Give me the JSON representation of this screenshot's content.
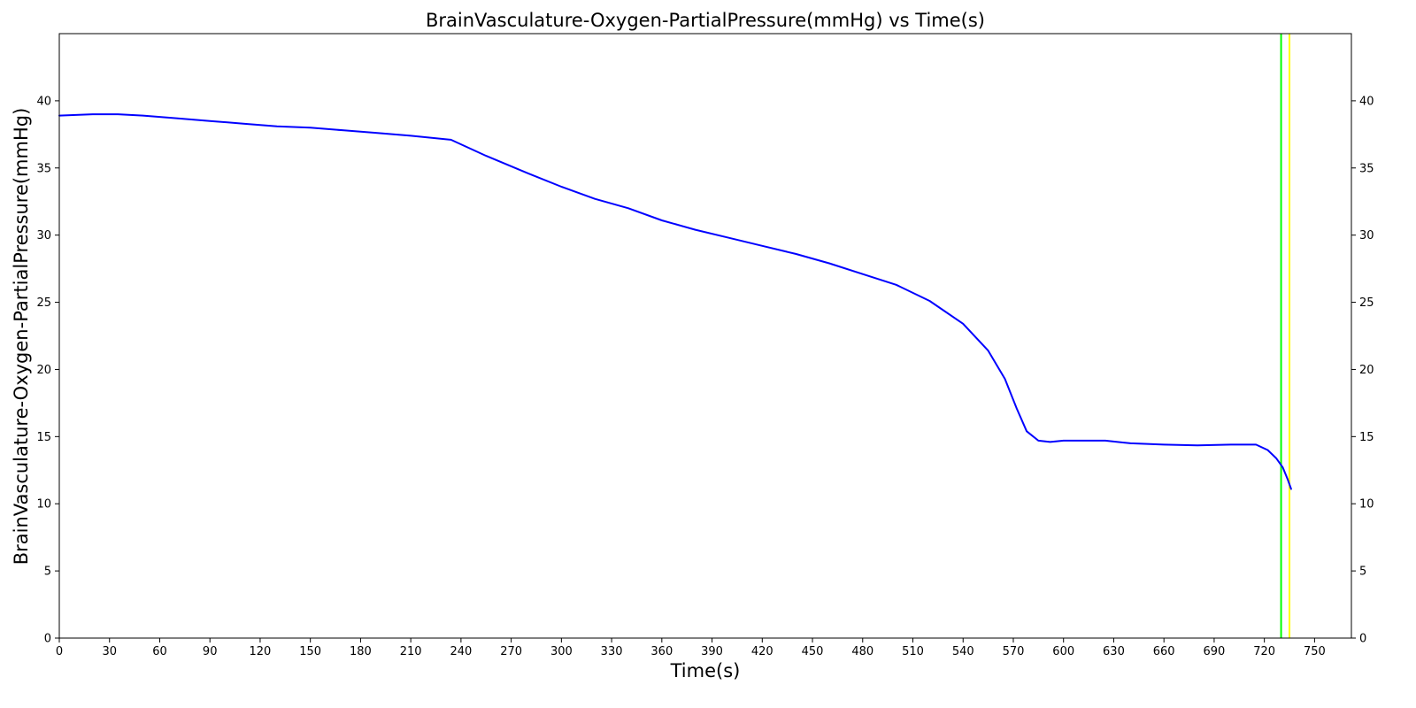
{
  "chart_data": {
    "type": "line",
    "title": "BrainVasculature-Oxygen-PartialPressure(mmHg) vs Time(s)",
    "xlabel": "Time(s)",
    "ylabel": "BrainVasculature-Oxygen-PartialPressure(mmHg)",
    "xlim": [
      0,
      772
    ],
    "ylim": [
      0,
      45
    ],
    "x_ticks": [
      0,
      30,
      60,
      90,
      120,
      150,
      180,
      210,
      240,
      270,
      300,
      330,
      360,
      390,
      420,
      450,
      480,
      510,
      540,
      570,
      600,
      630,
      660,
      690,
      720,
      750
    ],
    "y_ticks": [
      0,
      5,
      10,
      15,
      20,
      25,
      30,
      35,
      40
    ],
    "y_ticks_right": true,
    "grid": false,
    "line_color": "#0000ff",
    "series": [
      {
        "x": [
          0,
          20,
          35,
          50,
          70,
          90,
          110,
          130,
          150,
          170,
          190,
          210,
          234,
          255,
          280,
          300,
          320,
          340,
          360,
          380,
          400,
          420,
          440,
          460,
          480,
          500,
          520,
          540,
          555,
          565,
          572,
          578,
          585,
          592,
          600,
          610,
          625,
          640,
          660,
          680,
          700,
          715,
          722,
          727,
          731,
          734,
          736
        ],
        "values": [
          38.9,
          39.0,
          39.0,
          38.9,
          38.7,
          38.5,
          38.3,
          38.1,
          38.0,
          37.8,
          37.6,
          37.4,
          37.1,
          35.9,
          34.6,
          33.6,
          32.7,
          32.0,
          31.1,
          30.4,
          29.8,
          29.2,
          28.6,
          27.9,
          27.1,
          26.3,
          25.1,
          23.4,
          21.4,
          19.3,
          17.1,
          15.4,
          14.7,
          14.6,
          14.7,
          14.7,
          14.7,
          14.5,
          14.4,
          14.35,
          14.4,
          14.4,
          14.0,
          13.4,
          12.7,
          11.8,
          11.1
        ]
      }
    ],
    "vertical_lines": [
      {
        "x": 730,
        "color": "#00ff00"
      },
      {
        "x": 735,
        "color": "#ffff00"
      }
    ]
  }
}
